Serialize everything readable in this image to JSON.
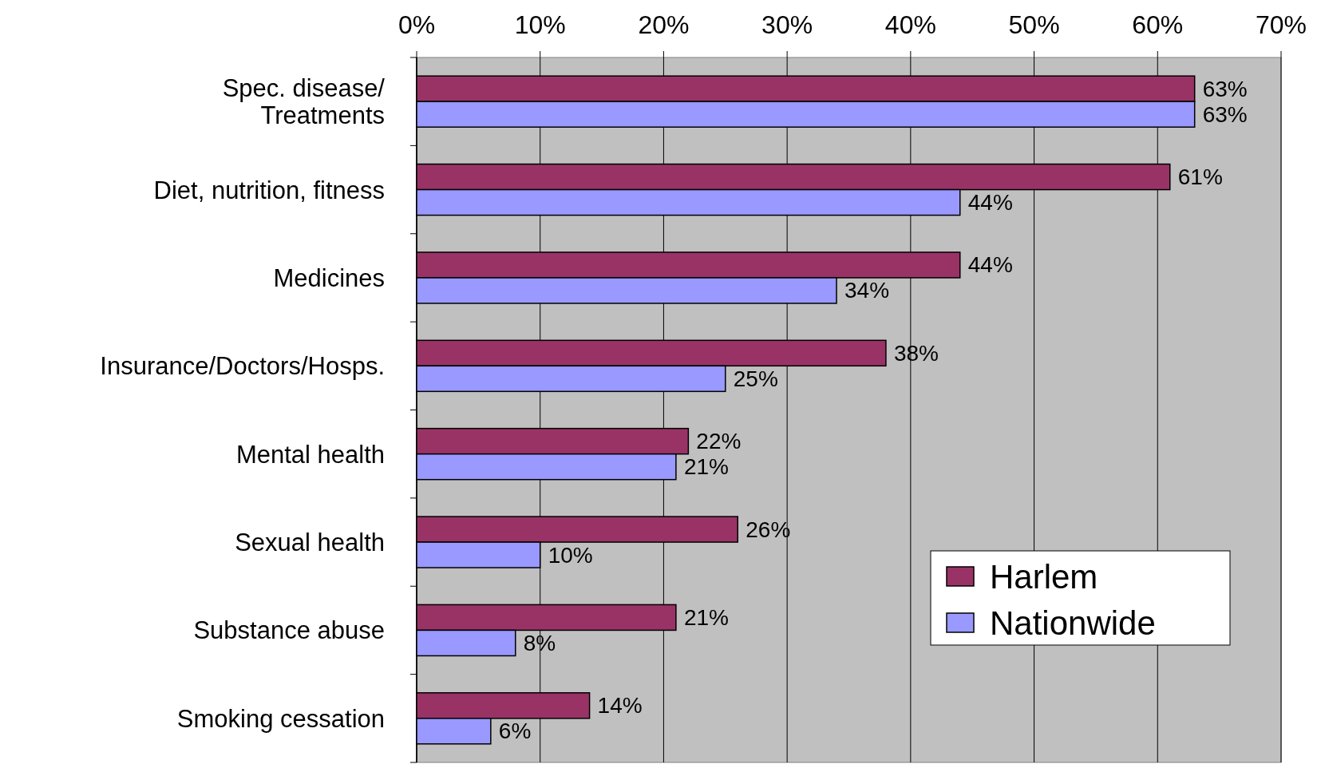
{
  "chart_data": {
    "type": "bar",
    "orientation": "horizontal",
    "categories": [
      "Spec. disease/\nTreatments",
      "Diet, nutrition, fitness",
      "Medicines",
      "Insurance/Doctors/Hosps.",
      "Mental health",
      "Sexual health",
      "Substance abuse",
      "Smoking cessation"
    ],
    "series": [
      {
        "name": "Harlem",
        "color": "#993366",
        "values": [
          63,
          61,
          44,
          38,
          22,
          26,
          21,
          14
        ],
        "value_labels": [
          "63%",
          "61%",
          "44%",
          "38%",
          "22%",
          "26%",
          "21%",
          "14%"
        ]
      },
      {
        "name": "Nationwide",
        "color": "#9999ff",
        "values": [
          63,
          44,
          34,
          25,
          21,
          10,
          8,
          6
        ],
        "value_labels": [
          "63%",
          "44%",
          "34%",
          "25%",
          "21%",
          "10%",
          "8%",
          "6%"
        ]
      }
    ],
    "xlim": [
      0,
      70
    ],
    "xticks": [
      {
        "value": 0,
        "label": "0%"
      },
      {
        "value": 10,
        "label": "10%"
      },
      {
        "value": 20,
        "label": "20%"
      },
      {
        "value": 30,
        "label": "30%"
      },
      {
        "value": 40,
        "label": "40%"
      },
      {
        "value": 50,
        "label": "50%"
      },
      {
        "value": 60,
        "label": "60%"
      },
      {
        "value": 70,
        "label": "70%"
      }
    ],
    "grid": "x",
    "legend": "bottom right"
  }
}
